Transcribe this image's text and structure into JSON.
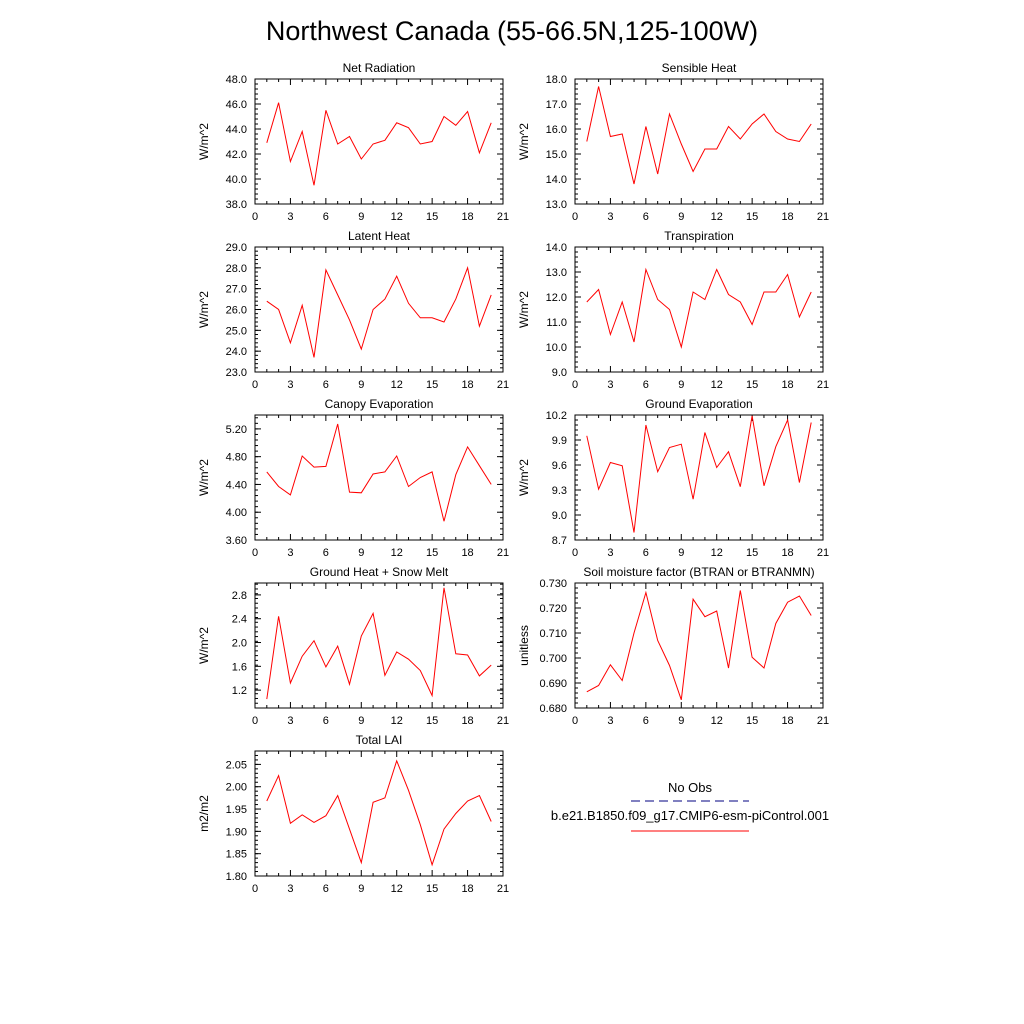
{
  "title": "Northwest Canada (55-66.5N,125-100W)",
  "colors": {
    "series": "#ff0000",
    "obs": "#000080",
    "axis": "#000000"
  },
  "legend": {
    "obs_label": "No Obs",
    "model_label": "b.e21.B1850.f09_g17.CMIP6-esm-piControl.001"
  },
  "chart_data": [
    {
      "type": "line",
      "title": "Net Radiation",
      "ylabel": "W/m^2",
      "xlim": [
        0,
        21
      ],
      "ylim": [
        38.0,
        48.0
      ],
      "xticks": [
        "0",
        "3",
        "6",
        "9",
        "12",
        "15",
        "18",
        "21"
      ],
      "yticks": [
        "38.0",
        "40.0",
        "42.0",
        "44.0",
        "46.0",
        "48.0"
      ],
      "x": [
        1,
        2,
        3,
        4,
        5,
        6,
        7,
        8,
        9,
        10,
        11,
        12,
        13,
        14,
        15,
        16,
        17,
        18,
        19,
        20
      ],
      "values": [
        42.9,
        46.1,
        41.4,
        43.8,
        39.5,
        45.5,
        42.8,
        43.4,
        41.6,
        42.8,
        43.1,
        44.5,
        44.1,
        42.8,
        43.0,
        45.0,
        44.3,
        45.4,
        42.1,
        44.5
      ]
    },
    {
      "type": "line",
      "title": "Sensible Heat",
      "ylabel": "W/m^2",
      "xlim": [
        0,
        21
      ],
      "ylim": [
        13.0,
        18.0
      ],
      "xticks": [
        "0",
        "3",
        "6",
        "9",
        "12",
        "15",
        "18",
        "21"
      ],
      "yticks": [
        "13.0",
        "14.0",
        "15.0",
        "16.0",
        "17.0",
        "18.0"
      ],
      "x": [
        1,
        2,
        3,
        4,
        5,
        6,
        7,
        8,
        9,
        10,
        11,
        12,
        13,
        14,
        15,
        16,
        17,
        18,
        19,
        20
      ],
      "values": [
        15.5,
        17.7,
        15.7,
        15.8,
        13.8,
        16.1,
        14.2,
        16.6,
        15.4,
        14.3,
        15.2,
        15.2,
        16.1,
        15.6,
        16.2,
        16.6,
        15.9,
        15.6,
        15.5,
        16.2
      ]
    },
    {
      "type": "line",
      "title": "Latent Heat",
      "ylabel": "W/m^2",
      "xlim": [
        0,
        21
      ],
      "ylim": [
        23.0,
        29.0
      ],
      "xticks": [
        "0",
        "3",
        "6",
        "9",
        "12",
        "15",
        "18",
        "21"
      ],
      "yticks": [
        "23.0",
        "24.0",
        "25.0",
        "26.0",
        "27.0",
        "28.0",
        "29.0"
      ],
      "x": [
        1,
        2,
        3,
        4,
        5,
        6,
        7,
        8,
        9,
        10,
        11,
        12,
        13,
        14,
        15,
        16,
        17,
        18,
        19,
        20
      ],
      "values": [
        26.4,
        26.0,
        24.4,
        26.2,
        23.7,
        27.9,
        26.7,
        25.5,
        24.1,
        26.0,
        26.5,
        27.6,
        26.3,
        25.6,
        25.6,
        25.4,
        26.5,
        28.0,
        25.2,
        26.7
      ]
    },
    {
      "type": "line",
      "title": "Transpiration",
      "ylabel": "W/m^2",
      "xlim": [
        0,
        21
      ],
      "ylim": [
        9.0,
        14.0
      ],
      "xticks": [
        "0",
        "3",
        "6",
        "9",
        "12",
        "15",
        "18",
        "21"
      ],
      "yticks": [
        "9.0",
        "10.0",
        "11.0",
        "12.0",
        "13.0",
        "14.0"
      ],
      "x": [
        1,
        2,
        3,
        4,
        5,
        6,
        7,
        8,
        9,
        10,
        11,
        12,
        13,
        14,
        15,
        16,
        17,
        18,
        19,
        20
      ],
      "values": [
        11.8,
        12.3,
        10.5,
        11.8,
        10.2,
        13.1,
        11.9,
        11.5,
        10.0,
        12.2,
        11.9,
        13.1,
        12.1,
        11.8,
        10.9,
        12.2,
        12.2,
        12.9,
        11.2,
        12.2
      ]
    },
    {
      "type": "line",
      "title": "Canopy Evaporation",
      "ylabel": "W/m^2",
      "xlim": [
        0,
        21
      ],
      "ylim": [
        3.6,
        5.4
      ],
      "xticks": [
        "0",
        "3",
        "6",
        "9",
        "12",
        "15",
        "18",
        "21"
      ],
      "yticks": [
        "3.60",
        "4.00",
        "4.40",
        "4.80",
        "5.20"
      ],
      "x": [
        1,
        2,
        3,
        4,
        5,
        6,
        7,
        8,
        9,
        10,
        11,
        12,
        13,
        14,
        15,
        16,
        17,
        18,
        19,
        20
      ],
      "values": [
        4.58,
        4.37,
        4.25,
        4.81,
        4.65,
        4.66,
        5.27,
        4.29,
        4.28,
        4.55,
        4.58,
        4.81,
        4.37,
        4.5,
        4.58,
        3.87,
        4.54,
        4.94,
        4.67,
        4.4
      ]
    },
    {
      "type": "line",
      "title": "Ground Evaporation",
      "ylabel": "W/m^2",
      "xlim": [
        0,
        21
      ],
      "ylim": [
        8.7,
        10.2
      ],
      "xticks": [
        "0",
        "3",
        "6",
        "9",
        "12",
        "15",
        "18",
        "21"
      ],
      "yticks": [
        "8.7",
        "9.0",
        "9.3",
        "9.6",
        "9.9",
        "10.2"
      ],
      "x": [
        1,
        2,
        3,
        4,
        5,
        6,
        7,
        8,
        9,
        10,
        11,
        12,
        13,
        14,
        15,
        16,
        17,
        18,
        19,
        20
      ],
      "values": [
        9.95,
        9.31,
        9.63,
        9.59,
        8.79,
        10.08,
        9.52,
        9.81,
        9.85,
        9.19,
        9.99,
        9.57,
        9.76,
        9.34,
        10.19,
        9.35,
        9.82,
        10.14,
        9.39,
        10.11
      ]
    },
    {
      "type": "line",
      "title": "Ground Heat + Snow Melt",
      "ylabel": "W/m^2",
      "xlim": [
        0,
        21
      ],
      "ylim": [
        0.9,
        3.0
      ],
      "xticks": [
        "0",
        "3",
        "6",
        "9",
        "12",
        "15",
        "18",
        "21"
      ],
      "yticks": [
        "1.2",
        "1.6",
        "2.0",
        "2.4",
        "2.8"
      ],
      "x": [
        1,
        2,
        3,
        4,
        5,
        6,
        7,
        8,
        9,
        10,
        11,
        12,
        13,
        14,
        15,
        16,
        17,
        18,
        19,
        20
      ],
      "values": [
        1.05,
        2.44,
        1.32,
        1.77,
        2.03,
        1.59,
        1.94,
        1.3,
        2.11,
        2.49,
        1.45,
        1.84,
        1.72,
        1.53,
        1.11,
        2.92,
        1.81,
        1.79,
        1.44,
        1.62
      ]
    },
    {
      "type": "line",
      "title": "Soil moisture factor (BTRAN or BTRANMN)",
      "ylabel": "unitless",
      "xlim": [
        0,
        21
      ],
      "ylim": [
        0.68,
        0.73
      ],
      "xticks": [
        "0",
        "3",
        "6",
        "9",
        "12",
        "15",
        "18",
        "21"
      ],
      "yticks": [
        "0.680",
        "0.690",
        "0.700",
        "0.710",
        "0.720",
        "0.730"
      ],
      "x": [
        1,
        2,
        3,
        4,
        5,
        6,
        7,
        8,
        9,
        10,
        11,
        12,
        13,
        14,
        15,
        16,
        17,
        18,
        19,
        20
      ],
      "values": [
        0.6865,
        0.689,
        0.6973,
        0.691,
        0.71,
        0.7262,
        0.707,
        0.697,
        0.6833,
        0.7235,
        0.7165,
        0.7188,
        0.696,
        0.727,
        0.7003,
        0.696,
        0.7138,
        0.7223,
        0.7248,
        0.717
      ]
    },
    {
      "type": "line",
      "title": "Total LAI",
      "ylabel": "m2/m2",
      "xlim": [
        0,
        21
      ],
      "ylim": [
        1.8,
        2.08
      ],
      "xticks": [
        "0",
        "3",
        "6",
        "9",
        "12",
        "15",
        "18",
        "21"
      ],
      "yticks": [
        "1.80",
        "1.85",
        "1.90",
        "1.95",
        "2.00",
        "2.05"
      ],
      "x": [
        1,
        2,
        3,
        4,
        5,
        6,
        7,
        8,
        9,
        10,
        11,
        12,
        13,
        14,
        15,
        16,
        17,
        18,
        19,
        20
      ],
      "values": [
        1.968,
        2.025,
        1.918,
        1.937,
        1.92,
        1.935,
        1.98,
        1.905,
        1.83,
        1.965,
        1.975,
        2.058,
        1.992,
        1.915,
        1.825,
        1.905,
        1.94,
        1.968,
        1.98,
        1.922
      ]
    }
  ]
}
